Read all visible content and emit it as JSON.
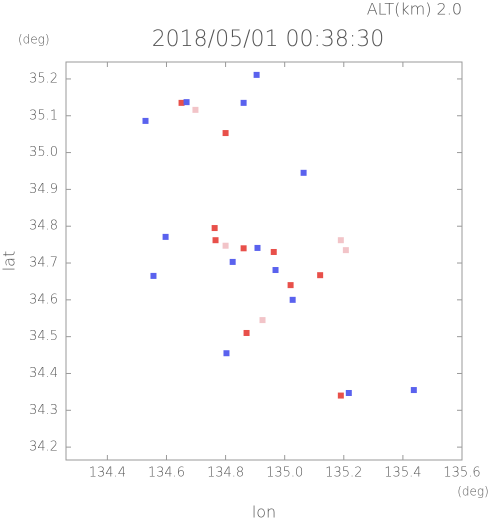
{
  "chart_data": {
    "type": "scatter",
    "title": "2018/05/01 00:38:30",
    "annotation": "ALT(km) 2.0",
    "y_unit": "(deg)",
    "x_unit": "(deg)",
    "xlabel": "lon",
    "ylabel": "lat",
    "xlim": [
      134.26,
      135.6
    ],
    "ylim": [
      34.165,
      35.246
    ],
    "xticks": [
      134.4,
      134.6,
      134.8,
      {
        "value": 135,
        "label": "135.0"
      },
      135.2,
      135.4,
      135.6
    ],
    "yticks": [
      34.2,
      34.3,
      34.4,
      34.5,
      34.6,
      34.7,
      34.8,
      34.9,
      {
        "value": 35,
        "label": "35.0"
      },
      35.1,
      35.2
    ],
    "series": [
      {
        "color": "#e8504a",
        "x": [
          134.8,
          135.19,
          134.766,
          134.861,
          134.963,
          135.02,
          134.871,
          135.12,
          134.651,
          134.763
        ],
        "y": [
          35.053,
          34.34,
          34.762,
          34.74,
          34.73,
          34.64,
          34.51,
          34.667,
          35.135,
          34.795
        ]
      },
      {
        "color": "#5a62ee",
        "x": [
          134.861,
          135.064,
          134.803,
          135.217,
          134.556,
          134.668,
          134.597,
          134.908,
          135.027,
          134.969,
          134.824,
          134.905,
          135.437,
          134.529
        ],
        "y": [
          35.135,
          34.945,
          34.455,
          34.347,
          34.665,
          35.137,
          34.771,
          34.741,
          34.6,
          34.681,
          34.703,
          35.211,
          34.355,
          35.086
        ]
      },
      {
        "color": "#f2c4c8",
        "x": [
          135.19,
          135.207,
          134.925,
          134.8,
          134.698
        ],
        "y": [
          34.762,
          34.735,
          34.545,
          34.747,
          35.116
        ]
      }
    ]
  }
}
